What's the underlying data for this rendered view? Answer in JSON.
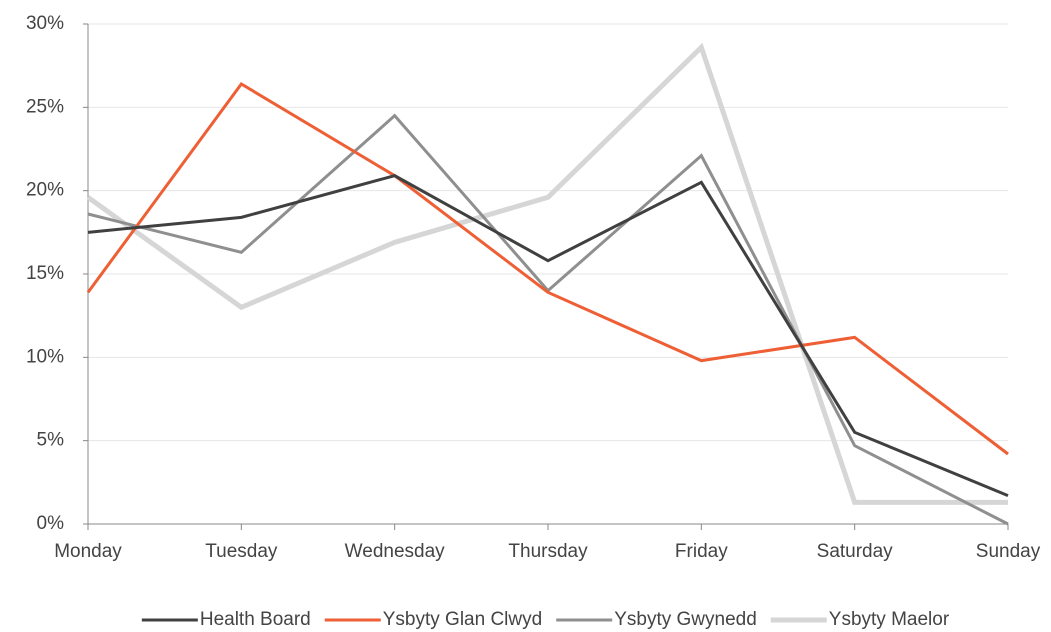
{
  "chart_data": {
    "type": "line",
    "categories": [
      "Monday",
      "Tuesday",
      "Wednesday",
      "Thursday",
      "Friday",
      "Saturday",
      "Sunday"
    ],
    "series": [
      {
        "name": "Health Board",
        "color": "#404040",
        "values": [
          17.5,
          18.4,
          20.9,
          15.8,
          20.5,
          5.5,
          1.7
        ]
      },
      {
        "name": "Ysbyty Glan Clwyd",
        "color": "#ee5f35",
        "values": [
          13.9,
          26.4,
          20.9,
          13.9,
          9.8,
          11.2,
          4.2
        ]
      },
      {
        "name": "Ysbyty Gwynedd",
        "color": "#8f8f8f",
        "values": [
          18.6,
          16.3,
          24.5,
          14.0,
          22.1,
          4.7,
          0
        ]
      },
      {
        "name": "Ysbyty Maelor",
        "color": "#d6d6d6",
        "values": [
          19.6,
          13.0,
          16.9,
          19.6,
          28.6,
          1.3,
          1.3
        ]
      }
    ],
    "ylim": [
      0,
      30
    ],
    "yticks": [
      {
        "value": 0,
        "label": "0%"
      },
      {
        "value": 5,
        "label": "5%"
      },
      {
        "value": 10,
        "label": "10%"
      },
      {
        "value": 15,
        "label": "15%"
      },
      {
        "value": 20,
        "label": "20%"
      },
      {
        "value": 25,
        "label": "25%"
      },
      {
        "value": 30,
        "label": "30%"
      }
    ],
    "grid": true,
    "legend_position": "bottom"
  }
}
